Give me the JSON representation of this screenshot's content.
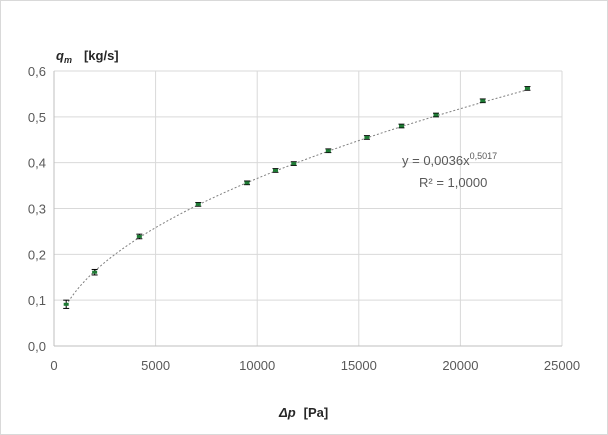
{
  "chart_data": {
    "type": "scatter",
    "title": "",
    "ylabel_symbol": "q",
    "ylabel_subscript": "m",
    "ylabel_unit": "[kg/s]",
    "xlabel_symbol": "Δp",
    "xlabel_unit": "[Pa]",
    "xlim": [
      0,
      25000
    ],
    "ylim": [
      0,
      0.6
    ],
    "x_ticks": [
      "0",
      "5000",
      "10000",
      "15000",
      "20000",
      "25000"
    ],
    "y_ticks": [
      "0,0",
      "0,1",
      "0,2",
      "0,3",
      "0,4",
      "0,5",
      "0,6"
    ],
    "grid": true,
    "legend": "none",
    "series": [
      {
        "x": [
          600,
          2000,
          4200,
          7100,
          9500,
          10900,
          11800,
          13500,
          15400,
          17100,
          18800,
          21100,
          23300
        ],
        "y": [
          0.091,
          0.161,
          0.239,
          0.309,
          0.356,
          0.383,
          0.398,
          0.426,
          0.455,
          0.48,
          0.504,
          0.535,
          0.562
        ],
        "error": [
          0.009,
          0.006,
          0.005,
          0.004,
          0.004,
          0.004,
          0.004,
          0.004,
          0.004,
          0.004,
          0.004,
          0.004,
          0.004
        ]
      }
    ],
    "trendline": {
      "type": "power",
      "coefficient": 0.0036,
      "exponent": 0.5017,
      "equation_base": "y = 0,0036x",
      "equation_exponent": "0,5017",
      "r_squared_text": "R² = 1,0000"
    },
    "colors": {
      "marker": "#1e7b34",
      "errorbar": "#000000",
      "trendline": "#7f7f7f",
      "grid": "#d9d9d9",
      "axis": "#bfbfbf"
    }
  }
}
